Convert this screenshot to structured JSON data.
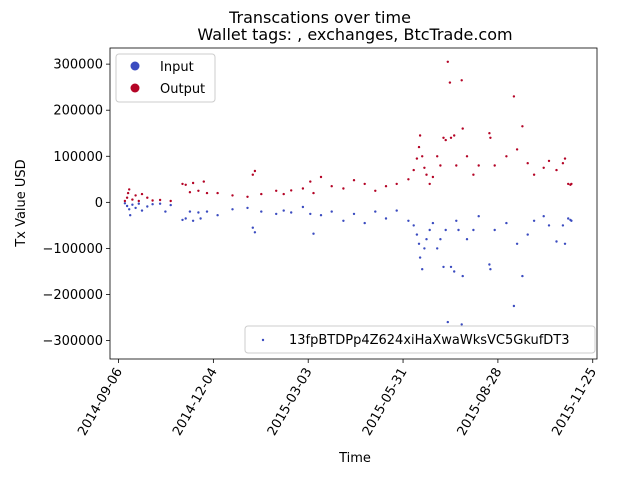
{
  "chart_data": {
    "type": "scatter",
    "title": "Transcations over time",
    "subtitle": "Wallet tags: , exchanges, BtcTrade.com",
    "xlabel": "Time",
    "ylabel": "Tx Value USD",
    "x_range": [
      "2014-08-29",
      "2015-11-29"
    ],
    "y_range": [
      -340000,
      335000
    ],
    "x_ticks": [
      "2014-09-06",
      "2014-12-04",
      "2015-03-03",
      "2015-05-31",
      "2015-08-28",
      "2015-11-25"
    ],
    "y_ticks": [
      -300000,
      -200000,
      -100000,
      0,
      100000,
      200000,
      300000
    ],
    "y_tick_labels": [
      "−300000",
      "−200000",
      "−100000",
      "0",
      "100000",
      "200000",
      "300000"
    ],
    "grid": false,
    "legend_main": {
      "placement": "upper-left",
      "entries": [
        {
          "label": "Input",
          "color": "#3b4cc0"
        },
        {
          "label": "Output",
          "color": "#b40426"
        }
      ]
    },
    "legend_address": {
      "placement": "lower-right",
      "label": "13fpBTDPp4Z624xiHaXwaWksVC5GkufDT3",
      "color": "#3b4cc0"
    },
    "series": [
      {
        "name": "Input",
        "color": "#3b4cc0",
        "points": [
          [
            "2014-09-12",
            -2000
          ],
          [
            "2014-09-14",
            -8000
          ],
          [
            "2014-09-16",
            -15000
          ],
          [
            "2014-09-17",
            -28000
          ],
          [
            "2014-09-19",
            -5000
          ],
          [
            "2014-09-22",
            -12000
          ],
          [
            "2014-09-25",
            -3000
          ],
          [
            "2014-09-28",
            -18000
          ],
          [
            "2014-10-03",
            -9000
          ],
          [
            "2014-10-08",
            -4000
          ],
          [
            "2014-10-15",
            -3000
          ],
          [
            "2014-10-20",
            -20000
          ],
          [
            "2014-10-25",
            -6000
          ],
          [
            "2014-11-05",
            -38000
          ],
          [
            "2014-11-08",
            -35000
          ],
          [
            "2014-11-12",
            -20000
          ],
          [
            "2014-11-15",
            -40000
          ],
          [
            "2014-11-20",
            -22000
          ],
          [
            "2014-11-22",
            -35000
          ],
          [
            "2014-11-28",
            -20000
          ],
          [
            "2014-12-08",
            -28000
          ],
          [
            "2014-12-22",
            -15000
          ],
          [
            "2015-01-05",
            -12000
          ],
          [
            "2015-01-10",
            -55000
          ],
          [
            "2015-01-12",
            -65000
          ],
          [
            "2015-01-18",
            -20000
          ],
          [
            "2015-02-01",
            -25000
          ],
          [
            "2015-02-08",
            -18000
          ],
          [
            "2015-02-15",
            -22000
          ],
          [
            "2015-02-26",
            -10000
          ],
          [
            "2015-03-05",
            -25000
          ],
          [
            "2015-03-08",
            -68000
          ],
          [
            "2015-03-15",
            -28000
          ],
          [
            "2015-03-25",
            -20000
          ],
          [
            "2015-04-05",
            -40000
          ],
          [
            "2015-04-15",
            -25000
          ],
          [
            "2015-04-25",
            -45000
          ],
          [
            "2015-05-05",
            -20000
          ],
          [
            "2015-05-15",
            -35000
          ],
          [
            "2015-05-25",
            -18000
          ],
          [
            "2015-06-05",
            -40000
          ],
          [
            "2015-06-10",
            -50000
          ],
          [
            "2015-06-13",
            -70000
          ],
          [
            "2015-06-15",
            -90000
          ],
          [
            "2015-06-16",
            -120000
          ],
          [
            "2015-06-18",
            -145000
          ],
          [
            "2015-06-20",
            -100000
          ],
          [
            "2015-06-22",
            -80000
          ],
          [
            "2015-06-25",
            -60000
          ],
          [
            "2015-06-28",
            -45000
          ],
          [
            "2015-07-02",
            -100000
          ],
          [
            "2015-07-05",
            -80000
          ],
          [
            "2015-07-08",
            -140000
          ],
          [
            "2015-07-10",
            -60000
          ],
          [
            "2015-07-12",
            -260000
          ],
          [
            "2015-07-15",
            -140000
          ],
          [
            "2015-07-18",
            -150000
          ],
          [
            "2015-07-20",
            -40000
          ],
          [
            "2015-07-22",
            -60000
          ],
          [
            "2015-07-25",
            -265000
          ],
          [
            "2015-07-26",
            -160000
          ],
          [
            "2015-07-30",
            -80000
          ],
          [
            "2015-08-05",
            -60000
          ],
          [
            "2015-08-10",
            -30000
          ],
          [
            "2015-08-20",
            -135000
          ],
          [
            "2015-08-21",
            -145000
          ],
          [
            "2015-08-25",
            -60000
          ],
          [
            "2015-09-05",
            -45000
          ],
          [
            "2015-09-12",
            -225000
          ],
          [
            "2015-09-15",
            -90000
          ],
          [
            "2015-09-20",
            -160000
          ],
          [
            "2015-09-25",
            -70000
          ],
          [
            "2015-10-01",
            -40000
          ],
          [
            "2015-10-10",
            -30000
          ],
          [
            "2015-10-15",
            -50000
          ],
          [
            "2015-10-22",
            -85000
          ],
          [
            "2015-10-28",
            -50000
          ],
          [
            "2015-10-30",
            -90000
          ],
          [
            "2015-11-02",
            -35000
          ],
          [
            "2015-11-04",
            -38000
          ],
          [
            "2015-11-05",
            -40000
          ]
        ]
      },
      {
        "name": "Output",
        "color": "#b40426",
        "points": [
          [
            "2014-09-12",
            3000
          ],
          [
            "2014-09-14",
            10000
          ],
          [
            "2014-09-15",
            20000
          ],
          [
            "2014-09-16",
            28000
          ],
          [
            "2014-09-19",
            6000
          ],
          [
            "2014-09-22",
            15000
          ],
          [
            "2014-09-25",
            3000
          ],
          [
            "2014-09-28",
            18000
          ],
          [
            "2014-10-03",
            10000
          ],
          [
            "2014-10-08",
            4000
          ],
          [
            "2014-10-15",
            5000
          ],
          [
            "2014-10-25",
            3000
          ],
          [
            "2014-11-05",
            40000
          ],
          [
            "2014-11-08",
            38000
          ],
          [
            "2014-11-12",
            22000
          ],
          [
            "2014-11-15",
            42000
          ],
          [
            "2014-11-20",
            25000
          ],
          [
            "2014-11-25",
            45000
          ],
          [
            "2014-11-28",
            20000
          ],
          [
            "2014-12-08",
            20000
          ],
          [
            "2014-12-22",
            15000
          ],
          [
            "2015-01-05",
            12000
          ],
          [
            "2015-01-10",
            60000
          ],
          [
            "2015-01-12",
            68000
          ],
          [
            "2015-01-18",
            18000
          ],
          [
            "2015-02-01",
            25000
          ],
          [
            "2015-02-08",
            18000
          ],
          [
            "2015-02-15",
            26000
          ],
          [
            "2015-02-26",
            30000
          ],
          [
            "2015-03-05",
            45000
          ],
          [
            "2015-03-08",
            20000
          ],
          [
            "2015-03-15",
            55000
          ],
          [
            "2015-03-25",
            35000
          ],
          [
            "2015-04-05",
            30000
          ],
          [
            "2015-04-15",
            48000
          ],
          [
            "2015-04-25",
            40000
          ],
          [
            "2015-05-05",
            25000
          ],
          [
            "2015-05-15",
            35000
          ],
          [
            "2015-05-25",
            40000
          ],
          [
            "2015-06-05",
            50000
          ],
          [
            "2015-06-10",
            70000
          ],
          [
            "2015-06-13",
            95000
          ],
          [
            "2015-06-15",
            120000
          ],
          [
            "2015-06-16",
            145000
          ],
          [
            "2015-06-18",
            100000
          ],
          [
            "2015-06-20",
            75000
          ],
          [
            "2015-06-22",
            60000
          ],
          [
            "2015-06-25",
            40000
          ],
          [
            "2015-06-28",
            55000
          ],
          [
            "2015-07-02",
            100000
          ],
          [
            "2015-07-05",
            80000
          ],
          [
            "2015-07-08",
            140000
          ],
          [
            "2015-07-10",
            135000
          ],
          [
            "2015-07-12",
            305000
          ],
          [
            "2015-07-14",
            260000
          ],
          [
            "2015-07-15",
            140000
          ],
          [
            "2015-07-18",
            145000
          ],
          [
            "2015-07-20",
            80000
          ],
          [
            "2015-07-25",
            265000
          ],
          [
            "2015-07-26",
            160000
          ],
          [
            "2015-07-30",
            100000
          ],
          [
            "2015-08-05",
            60000
          ],
          [
            "2015-08-10",
            80000
          ],
          [
            "2015-08-20",
            150000
          ],
          [
            "2015-08-21",
            140000
          ],
          [
            "2015-08-25",
            80000
          ],
          [
            "2015-09-05",
            100000
          ],
          [
            "2015-09-12",
            230000
          ],
          [
            "2015-09-15",
            115000
          ],
          [
            "2015-09-20",
            165000
          ],
          [
            "2015-09-25",
            85000
          ],
          [
            "2015-10-01",
            60000
          ],
          [
            "2015-10-10",
            75000
          ],
          [
            "2015-10-15",
            90000
          ],
          [
            "2015-10-22",
            70000
          ],
          [
            "2015-10-28",
            85000
          ],
          [
            "2015-10-30",
            95000
          ],
          [
            "2015-11-02",
            40000
          ],
          [
            "2015-11-04",
            38000
          ],
          [
            "2015-11-05",
            40000
          ]
        ]
      }
    ]
  }
}
